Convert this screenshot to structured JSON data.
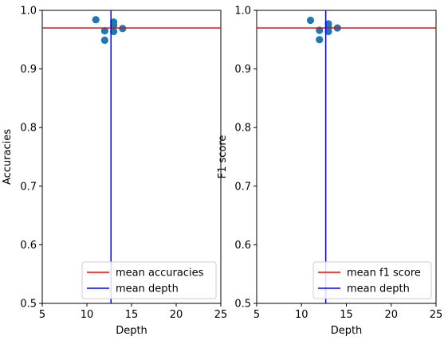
{
  "chart_data": [
    {
      "type": "scatter",
      "title": "",
      "xlabel": "Depth",
      "ylabel": "Accuracies",
      "xlim": [
        5,
        25
      ],
      "ylim": [
        0.5,
        1.0
      ],
      "xticks": [
        "5",
        "10",
        "15",
        "20",
        "25"
      ],
      "yticks": [
        "0.5",
        "0.6",
        "0.7",
        "0.8",
        "0.9",
        "1.0"
      ],
      "points": [
        {
          "x": 11,
          "y": 0.984
        },
        {
          "x": 12,
          "y": 0.965
        },
        {
          "x": 12,
          "y": 0.949
        },
        {
          "x": 13,
          "y": 0.98
        },
        {
          "x": 13,
          "y": 0.974
        },
        {
          "x": 13,
          "y": 0.964
        },
        {
          "x": 14,
          "y": 0.969
        }
      ],
      "hlines": [
        {
          "label": "mean accuracies",
          "y": 0.97,
          "color": "#ff0000"
        }
      ],
      "vlines": [
        {
          "label": "mean depth",
          "x": 12.7,
          "color": "#0000ff"
        }
      ],
      "legend_position": "lower-right",
      "grid": false,
      "point_color": "#1f77b4"
    },
    {
      "type": "scatter",
      "title": "",
      "xlabel": "Depth",
      "ylabel": "F1 score",
      "xlim": [
        5,
        25
      ],
      "ylim": [
        0.5,
        1.0
      ],
      "xticks": [
        "5",
        "10",
        "15",
        "20",
        "25"
      ],
      "yticks": [
        "0.5",
        "0.6",
        "0.7",
        "0.8",
        "0.9",
        "1.0"
      ],
      "points": [
        {
          "x": 11,
          "y": 0.983
        },
        {
          "x": 12,
          "y": 0.966
        },
        {
          "x": 12,
          "y": 0.95
        },
        {
          "x": 13,
          "y": 0.977
        },
        {
          "x": 13,
          "y": 0.971
        },
        {
          "x": 13,
          "y": 0.964
        },
        {
          "x": 14,
          "y": 0.97
        }
      ],
      "hlines": [
        {
          "label": "mean f1 score",
          "y": 0.97,
          "color": "#ff0000"
        }
      ],
      "vlines": [
        {
          "label": "mean depth",
          "x": 12.7,
          "color": "#0000ff"
        }
      ],
      "legend_position": "lower-right",
      "grid": false,
      "point_color": "#1f77b4"
    }
  ]
}
